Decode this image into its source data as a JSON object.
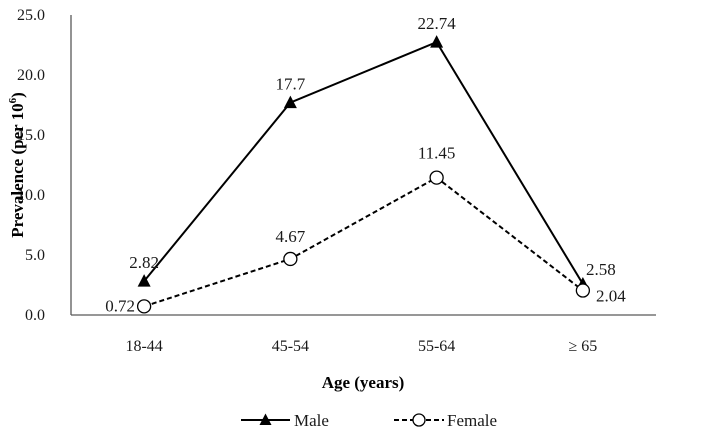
{
  "chart_data": {
    "type": "line",
    "categories": [
      "18-44",
      "45-54",
      "55-64",
      "≥ 65"
    ],
    "series": [
      {
        "name": "Male",
        "values": [
          2.82,
          17.7,
          22.74,
          2.58
        ],
        "labels": [
          "2.82",
          "17.7",
          "22.74",
          "2.58"
        ],
        "line_style": "solid",
        "marker": "filled-triangle",
        "color": "#000000"
      },
      {
        "name": "Female",
        "values": [
          0.72,
          4.67,
          11.45,
          2.04
        ],
        "labels": [
          "0.72",
          "4.67",
          "11.45",
          "2.04"
        ],
        "line_style": "dashed",
        "marker": "open-circle",
        "color": "#000000"
      }
    ],
    "xlabel": "Age (years)",
    "ylabel_main": "Prevalence (per 10",
    "ylabel_sup": "6",
    "ylabel_end": ")",
    "ylim": [
      0,
      25
    ],
    "yticks": [
      "0.0",
      "5.0",
      "10.0",
      "15.0",
      "20.0",
      "25.0"
    ],
    "ytick_values": [
      0,
      5,
      10,
      15,
      20,
      25
    ],
    "grid": false,
    "legend_position": "bottom"
  }
}
